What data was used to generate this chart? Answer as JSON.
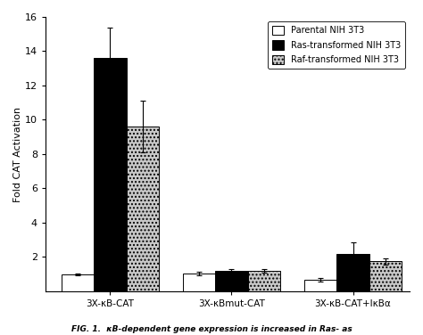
{
  "groups": [
    "3X-κB-CAT",
    "3X-κBmut-CAT",
    "3X-κB-CAT+IκBα"
  ],
  "series": [
    {
      "label": "Parental NIH 3T3",
      "color": "white",
      "edgecolor": "black",
      "hatch": null,
      "values": [
        1.0,
        1.05,
        0.65
      ],
      "errors": [
        0.05,
        0.1,
        0.1
      ]
    },
    {
      "label": "Ras-transformed NIH 3T3",
      "color": "black",
      "edgecolor": "black",
      "hatch": null,
      "values": [
        13.6,
        1.2,
        2.2
      ],
      "errors": [
        1.8,
        0.12,
        0.65
      ]
    },
    {
      "label": "Raf-transformed NIH 3T3",
      "color": "#c8c8c8",
      "edgecolor": "black",
      "hatch": "....",
      "values": [
        9.6,
        1.2,
        1.75
      ],
      "errors": [
        1.5,
        0.12,
        0.18
      ]
    }
  ],
  "ylabel": "Fold CAT Activation",
  "ylim": [
    0,
    16
  ],
  "yticks": [
    2,
    4,
    6,
    8,
    10,
    12,
    14,
    16
  ],
  "bar_width": 0.2,
  "group_positions": [
    0.35,
    1.1,
    1.85
  ],
  "background_color": "#ffffff",
  "figure_background": "#ffffff",
  "legend_loc": "upper right",
  "font_family": "sans-serif"
}
